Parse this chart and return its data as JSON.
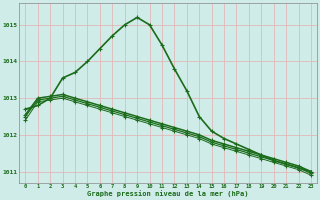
{
  "background_color": "#d0ece8",
  "plot_bg_color": "#d0ece8",
  "grid_color": "#e0b8b8",
  "line_color": "#1a6b1a",
  "xlim": [
    -0.5,
    23.5
  ],
  "ylim": [
    1010.7,
    1015.6
  ],
  "xticks": [
    0,
    1,
    2,
    3,
    4,
    5,
    6,
    7,
    8,
    9,
    10,
    11,
    12,
    13,
    14,
    15,
    16,
    17,
    18,
    19,
    20,
    21,
    22,
    23
  ],
  "yticks": [
    1011,
    1012,
    1013,
    1014,
    1015
  ],
  "xlabel": "Graphe pression niveau de la mer (hPa)",
  "series": [
    {
      "x": [
        0,
        1,
        2,
        3,
        4,
        5,
        6,
        7,
        8,
        9,
        10,
        11,
        12,
        13,
        14,
        15,
        16,
        17,
        18,
        19,
        20,
        21,
        22,
        23
      ],
      "y": [
        1012.7,
        1012.8,
        1013.0,
        1013.55,
        1013.7,
        1014.0,
        1014.35,
        1014.7,
        1015.0,
        1015.2,
        1015.0,
        1014.45,
        1013.8,
        1013.2,
        1012.5,
        1012.1,
        1011.9,
        1011.75,
        1011.6,
        1011.45,
        1011.3,
        1011.2,
        1011.1,
        1011.0
      ],
      "lw": 1.2,
      "marker": "+"
    },
    {
      "x": [
        0,
        1,
        2,
        3,
        4,
        5,
        6,
        7,
        8,
        9,
        10,
        11,
        12,
        13,
        14,
        15,
        16,
        17,
        18,
        19,
        20,
        21,
        22,
        23
      ],
      "y": [
        1012.55,
        1013.0,
        1013.05,
        1013.1,
        1013.0,
        1012.9,
        1012.8,
        1012.7,
        1012.6,
        1012.5,
        1012.4,
        1012.3,
        1012.2,
        1012.1,
        1012.0,
        1011.85,
        1011.75,
        1011.65,
        1011.55,
        1011.45,
        1011.35,
        1011.25,
        1011.15,
        1011.0
      ],
      "lw": 1.1,
      "marker": "+"
    },
    {
      "x": [
        0,
        1,
        2,
        3,
        4,
        5,
        6,
        7,
        8,
        9,
        10,
        11,
        12,
        13,
        14,
        15,
        16,
        17,
        18,
        19,
        20,
        21,
        22,
        23
      ],
      "y": [
        1012.5,
        1012.95,
        1013.0,
        1013.05,
        1012.95,
        1012.85,
        1012.75,
        1012.65,
        1012.55,
        1012.45,
        1012.35,
        1012.25,
        1012.15,
        1012.05,
        1011.95,
        1011.8,
        1011.7,
        1011.6,
        1011.5,
        1011.4,
        1011.3,
        1011.2,
        1011.1,
        1010.95
      ],
      "lw": 0.9,
      "marker": "+"
    },
    {
      "x": [
        0,
        1,
        2,
        3,
        4,
        5,
        6,
        7,
        8,
        9,
        10,
        11,
        12,
        13,
        14,
        15,
        16,
        17,
        18,
        19,
        20,
        21,
        22,
        23
      ],
      "y": [
        1012.4,
        1012.9,
        1012.95,
        1013.0,
        1012.9,
        1012.8,
        1012.7,
        1012.6,
        1012.5,
        1012.4,
        1012.3,
        1012.2,
        1012.1,
        1012.0,
        1011.9,
        1011.75,
        1011.65,
        1011.55,
        1011.45,
        1011.35,
        1011.25,
        1011.15,
        1011.05,
        1010.9
      ],
      "lw": 0.7,
      "marker": "+"
    }
  ]
}
